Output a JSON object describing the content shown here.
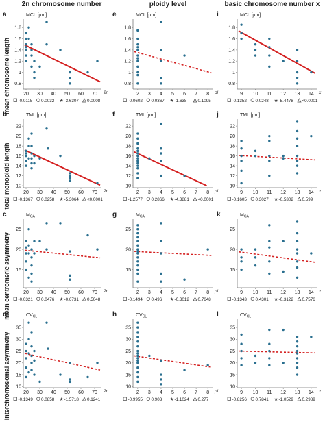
{
  "column_titles": [
    "2n chromosome number",
    "ploidy level",
    "basic chromosome number x"
  ],
  "row_labels": [
    "mean chromosome length",
    "total monoploid length",
    "mean centromeric asymmetry",
    "interchromosomal asymmetry"
  ],
  "colors": {
    "point": "#2a6f8f",
    "trend": "#d42020",
    "axis": "#777777"
  },
  "chart_data": [
    {
      "letter": "a",
      "type": "scatter",
      "ylabel": "MCL [µm]",
      "xlabel": "2n",
      "xlim": [
        18,
        75
      ],
      "ylim": [
        0.7,
        1.95
      ],
      "xticks": [
        20,
        30,
        40,
        50,
        60,
        70
      ],
      "yticks": [
        0.8,
        1.0,
        1.2,
        1.4,
        1.6,
        1.8
      ],
      "x": [
        20,
        20,
        20,
        20,
        20,
        20,
        20,
        22,
        22,
        24,
        24,
        24,
        24,
        26,
        26,
        26,
        30,
        35,
        35,
        45,
        52,
        52,
        52,
        65,
        72
      ],
      "y": [
        1.7,
        1.6,
        1.5,
        1.45,
        1.4,
        1.3,
        1.2,
        1.8,
        1.6,
        1.5,
        1.4,
        1.3,
        1.1,
        1.2,
        1.0,
        0.9,
        1.1,
        1.9,
        1.5,
        1.4,
        1.0,
        0.9,
        0.8,
        1.0,
        1.2
      ],
      "trend": {
        "style": "solid",
        "x": [
          19,
          74
        ],
        "y": [
          1.49,
          0.83
        ]
      },
      "stats": [
        "-0.0115",
        "0.0032",
        "-3.6307",
        "0.0008"
      ]
    },
    {
      "letter": "e",
      "type": "scatter",
      "ylabel": "MCL [µm]",
      "xlabel": "pl",
      "xlim": [
        1.6,
        8.4
      ],
      "ylim": [
        0.7,
        1.95
      ],
      "xticks": [
        2,
        3,
        4,
        5,
        6,
        7,
        8
      ],
      "yticks": [
        0.8,
        1.0,
        1.2,
        1.4,
        1.6,
        1.8
      ],
      "x": [
        2,
        2,
        2,
        2,
        2,
        2,
        2,
        2,
        2,
        2,
        2,
        2,
        4,
        4,
        4,
        4,
        4,
        6
      ],
      "y": [
        1.75,
        1.6,
        1.5,
        1.45,
        1.4,
        1.3,
        1.25,
        1.2,
        1.1,
        1.0,
        0.95,
        0.8,
        1.9,
        1.4,
        1.2,
        0.9,
        0.8,
        1.3
      ],
      "trend": {
        "style": "dashed",
        "x": [
          1.7,
          8.3
        ],
        "y": [
          1.37,
          0.99
        ]
      },
      "stats": [
        "-0.0602",
        "0.0367",
        "-1.638",
        "0.1095"
      ]
    },
    {
      "letter": "i",
      "type": "scatter",
      "ylabel": "MCL [µm]",
      "xlabel": "x",
      "xlim": [
        8.7,
        14.4
      ],
      "ylim": [
        0.7,
        1.95
      ],
      "xticks": [
        9,
        10,
        11,
        12,
        13,
        14
      ],
      "yticks": [
        0.8,
        1.0,
        1.2,
        1.4,
        1.6,
        1.8
      ],
      "x": [
        9,
        9,
        9,
        10,
        10,
        10,
        11,
        11,
        11,
        11,
        12,
        13,
        13,
        13,
        13,
        13,
        14
      ],
      "y": [
        1.85,
        1.7,
        1.6,
        1.5,
        1.4,
        1.3,
        1.6,
        1.45,
        1.3,
        1.1,
        1.2,
        1.4,
        1.2,
        1.0,
        0.9,
        0.8,
        1.0
      ],
      "trend": {
        "style": "solid",
        "x": [
          8.8,
          14.3
        ],
        "y": [
          1.74,
          0.98
        ]
      },
      "stats": [
        "-0.1352",
        "0.0248",
        "-5.4478",
        "<0.0001"
      ]
    },
    {
      "letter": "b",
      "type": "scatter",
      "ylabel": "TML [µm]",
      "xlabel": "2n",
      "xlim": [
        18,
        75
      ],
      "ylim": [
        9.6,
        23.4
      ],
      "xticks": [
        20,
        30,
        40,
        50,
        60,
        70
      ],
      "yticks": [
        10.0,
        12.0,
        14.0,
        16.0,
        18.0,
        20.0,
        22.0
      ],
      "x": [
        20,
        20,
        20,
        20,
        20,
        22,
        22,
        22,
        24,
        24,
        24,
        24,
        24,
        24,
        26,
        26,
        30,
        35,
        36,
        45,
        52,
        52,
        52,
        52,
        72
      ],
      "y": [
        17,
        16.5,
        16,
        15,
        14,
        19.5,
        18,
        15.5,
        20.5,
        18,
        16.5,
        15.5,
        14.5,
        13.5,
        16,
        14.5,
        15.5,
        21.5,
        17.5,
        16,
        12.5,
        12,
        11.5,
        11,
        10.5
      ],
      "trend": {
        "style": "solid",
        "x": [
          19,
          74
        ],
        "y": [
          17.2,
          10.1
        ]
      },
      "stats": [
        "-0.1367",
        "0.0258",
        "-5.3064",
        "<0.0001"
      ]
    },
    {
      "letter": "f",
      "type": "scatter",
      "ylabel": "TML [µm]",
      "xlabel": "pl",
      "xlim": [
        1.6,
        8.4
      ],
      "ylim": [
        9.6,
        23.4
      ],
      "xticks": [
        2,
        3,
        4,
        5,
        6,
        7,
        8
      ],
      "yticks": [
        10.0,
        12.0,
        14.0,
        16.0,
        18.0,
        20.0,
        22.0
      ],
      "x": [
        2,
        2,
        2,
        2,
        2,
        2,
        2,
        2,
        2,
        2,
        2,
        2,
        2,
        2,
        3,
        4,
        4,
        4,
        4,
        4,
        6
      ],
      "y": [
        20.5,
        19.5,
        18.5,
        17.5,
        17,
        16.5,
        16,
        15.5,
        15,
        14.5,
        14,
        13.5,
        12.5,
        11.5,
        15.5,
        22.5,
        17.5,
        16.5,
        15,
        12,
        12
      ],
      "trend": {
        "style": "solid",
        "x": [
          1.7,
          7.9
        ],
        "y": [
          16.8,
          10.0
        ]
      },
      "stats": [
        "-1.2577",
        "0.2866",
        "-4.3881",
        "<0.0001"
      ]
    },
    {
      "letter": "j",
      "type": "scatter",
      "ylabel": "TML [µm]",
      "xlabel": "x",
      "xlim": [
        8.7,
        14.4
      ],
      "ylim": [
        9.6,
        23.4
      ],
      "xticks": [
        9,
        10,
        11,
        12,
        13,
        14
      ],
      "yticks": [
        10.0,
        12.0,
        14.0,
        16.0,
        18.0,
        20.0,
        22.0
      ],
      "x": [
        9,
        9,
        9,
        9,
        9,
        9,
        10,
        10,
        11,
        11,
        11,
        11,
        11,
        12,
        12,
        13,
        13,
        13,
        13,
        13,
        13,
        13,
        13,
        14
      ],
      "y": [
        19,
        17.5,
        16,
        15,
        13,
        10.5,
        17,
        16,
        20,
        19,
        16,
        15,
        12,
        16,
        15.5,
        23,
        21,
        19.5,
        18,
        16,
        15,
        14,
        12.5,
        20
      ],
      "trend": {
        "style": "dashed",
        "x": [
          8.8,
          14.3
        ],
        "y": [
          16.1,
          15.2
        ]
      },
      "stats": [
        "-0.1605",
        "0.3027",
        "-0.5302",
        "0.599"
      ]
    },
    {
      "letter": "c",
      "type": "scatter",
      "ylabel": "M<sub>CA</sub>",
      "ylabel_text": "MCA",
      "xlabel": "2n",
      "xlim": [
        18,
        75
      ],
      "ylim": [
        10.5,
        27.5
      ],
      "xticks": [
        20,
        30,
        40,
        50,
        60,
        70
      ],
      "yticks": [
        15.0,
        20.0,
        25.0
      ],
      "x": [
        20,
        20,
        20,
        20,
        20,
        22,
        22,
        22,
        22,
        24,
        24,
        24,
        24,
        24,
        26,
        26,
        30,
        35,
        35,
        45,
        52,
        52,
        52,
        65,
        72
      ],
      "y": [
        22,
        20.5,
        19,
        17,
        15,
        25,
        21,
        19,
        13,
        20,
        18,
        16,
        14,
        12,
        22,
        19,
        22,
        26.5,
        20,
        26.5,
        19.5,
        13.5,
        12.5,
        23.5,
        20
      ],
      "trend": {
        "style": "dashed",
        "x": [
          19,
          74
        ],
        "y": [
          19.8,
          17.9
        ]
      },
      "stats": [
        "-0.0321",
        "0.0476",
        "-0.6731",
        "0.5048"
      ]
    },
    {
      "letter": "g",
      "type": "scatter",
      "ylabel": "M<sub>CA</sub>",
      "ylabel_text": "MCA",
      "xlabel": "pl",
      "xlim": [
        1.6,
        8.4
      ],
      "ylim": [
        10.5,
        27.5
      ],
      "xticks": [
        2,
        3,
        4,
        5,
        6,
        7,
        8
      ],
      "yticks": [
        15.0,
        20.0,
        25.0
      ],
      "x": [
        2,
        2,
        2,
        2,
        2,
        2,
        2,
        2,
        2,
        2,
        2,
        2,
        2,
        2,
        2,
        4,
        4,
        4,
        4,
        4,
        6,
        8
      ],
      "y": [
        26,
        25,
        24,
        23,
        22,
        21,
        20,
        19.5,
        19,
        18,
        17,
        16,
        15,
        14,
        12,
        26.5,
        22,
        19,
        14,
        12,
        12.5,
        20
      ],
      "trend": {
        "style": "dashed",
        "x": [
          1.7,
          8.3
        ],
        "y": [
          19.5,
          18.5
        ]
      },
      "stats": [
        "-0.1494",
        "0.496",
        "-0.3012",
        "0.7648"
      ]
    },
    {
      "letter": "k",
      "type": "scatter",
      "ylabel": "M<sub>CA</sub>",
      "ylabel_text": "MCA",
      "xlabel": "x",
      "xlim": [
        8.7,
        14.4
      ],
      "ylim": [
        10.5,
        27.5
      ],
      "xticks": [
        9,
        10,
        11,
        12,
        13,
        14
      ],
      "yticks": [
        15.0,
        20.0,
        25.0
      ],
      "x": [
        9,
        9,
        9,
        9,
        10,
        10,
        10,
        11,
        11,
        11,
        11,
        11,
        12,
        12,
        13,
        13,
        13,
        13,
        13,
        13,
        13,
        13,
        14
      ],
      "y": [
        20,
        18,
        17,
        15,
        20,
        18,
        16,
        26,
        22,
        20.5,
        17,
        14,
        22,
        14.5,
        27,
        24,
        22,
        20,
        19,
        17,
        15.5,
        13,
        19
      ],
      "trend": {
        "style": "dashed",
        "x": [
          8.8,
          14.3
        ],
        "y": [
          19.4,
          16.8
        ]
      },
      "stats": [
        "-0.1343",
        "0.4301",
        "-0.3122",
        "0.7576"
      ]
    },
    {
      "letter": "d",
      "type": "scatter",
      "ylabel": "CV<sub>CL</sub>",
      "ylabel_text": "CVCL",
      "xlabel": "2n",
      "xlim": [
        18,
        75
      ],
      "ylim": [
        9.5,
        38.5
      ],
      "xticks": [
        20,
        30,
        40,
        50,
        60,
        70
      ],
      "yticks": [
        10.0,
        15.0,
        20.0,
        25.0,
        30.0,
        35.0
      ],
      "x": [
        20,
        20,
        20,
        20,
        20,
        22,
        22,
        22,
        22,
        24,
        24,
        24,
        24,
        24,
        26,
        26,
        26,
        30,
        35,
        36,
        45,
        52,
        52,
        52,
        65,
        72
      ],
      "y": [
        28,
        25,
        22,
        18,
        14,
        37,
        30,
        24,
        16,
        33,
        27,
        23,
        20,
        17,
        25,
        21,
        15,
        12,
        37,
        26,
        15,
        20,
        13,
        12,
        14,
        20
      ],
      "trend": {
        "style": "dashed",
        "x": [
          19,
          74
        ],
        "y": [
          24.0,
          17.0
        ]
      },
      "stats": [
        "-0.1349",
        "0.0858",
        "-1.5718",
        "0.1241"
      ]
    },
    {
      "letter": "h",
      "type": "scatter",
      "ylabel": "CV<sub>CL</sub>",
      "ylabel_text": "CVCL",
      "xlabel": "pl",
      "xlim": [
        1.6,
        8.4
      ],
      "ylim": [
        9.5,
        38.5
      ],
      "xticks": [
        2,
        3,
        4,
        5,
        6,
        7,
        8
      ],
      "yticks": [
        10.0,
        15.0,
        20.0,
        25.0,
        30.0,
        35.0
      ],
      "x": [
        2,
        2,
        2,
        2,
        2,
        2,
        2,
        2,
        2,
        2,
        2,
        2,
        2,
        2,
        2,
        2,
        3,
        4,
        4,
        4,
        4,
        6,
        8
      ],
      "y": [
        37,
        35,
        33,
        31,
        29,
        27,
        25,
        24,
        23,
        22,
        21,
        20,
        18,
        16,
        14,
        12,
        23,
        21,
        15,
        13,
        11,
        17,
        19
      ],
      "trend": {
        "style": "dashed",
        "x": [
          1.7,
          8.3
        ],
        "y": [
          23.0,
          18.2
        ]
      },
      "stats": [
        "-0.9955",
        "0.903",
        "-1.1024",
        "0.277"
      ]
    },
    {
      "letter": "l",
      "type": "scatter",
      "ylabel": "CV<sub>CL</sub>",
      "ylabel_text": "CVCL",
      "xlabel": "x",
      "xlim": [
        8.7,
        14.4
      ],
      "ylim": [
        9.5,
        38.5
      ],
      "xticks": [
        9,
        10,
        11,
        12,
        13,
        14
      ],
      "yticks": [
        10.0,
        15.0,
        20.0,
        25.0,
        30.0,
        35.0
      ],
      "x": [
        9,
        9,
        9,
        9,
        9,
        10,
        10,
        11,
        11,
        11,
        11,
        11,
        12,
        12,
        13,
        13,
        13,
        13,
        13,
        13,
        13,
        13,
        13,
        14
      ],
      "y": [
        32,
        28,
        25,
        22,
        19,
        23,
        20,
        34,
        28,
        25,
        22,
        19,
        34,
        20,
        31,
        29,
        27,
        25,
        24,
        22,
        20,
        18,
        15,
        31
      ],
      "trend": {
        "style": "dashed",
        "x": [
          8.8,
          14.3
        ],
        "y": [
          25.0,
          24.2
        ]
      },
      "stats": [
        "-0.8256",
        "0.7841",
        "-1.0529",
        "0.2989"
      ]
    }
  ]
}
